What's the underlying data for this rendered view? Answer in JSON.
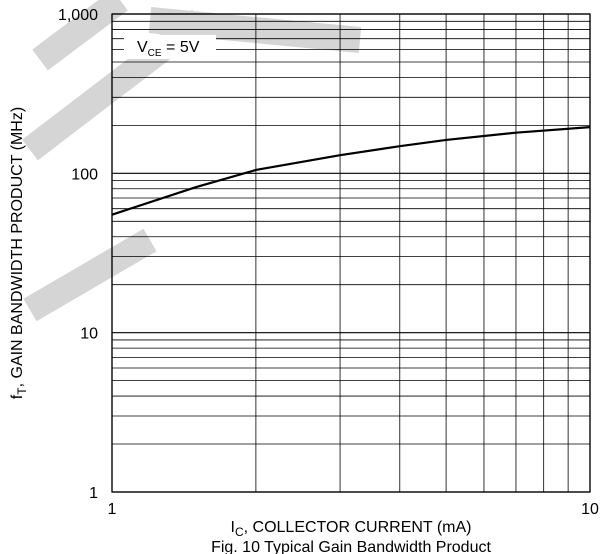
{
  "chart_data": {
    "type": "line",
    "log_x": true,
    "log_y": true,
    "grid": true,
    "xlim": [
      1,
      10
    ],
    "xticks": [
      1,
      10
    ],
    "ylim": [
      1,
      1000
    ],
    "yticks": [
      1,
      10,
      100,
      {
        "value": 1000,
        "label": "1,000"
      }
    ],
    "x_label": {
      "main": "I",
      "sub": "C",
      "rest": ", COLLECTOR CURRENT (mA)"
    },
    "y_label": {
      "main": "f",
      "sub": "T",
      "rest": ", GAIN BANDWIDTH PRODUCT (MHz)"
    },
    "annotation": {
      "main": "V",
      "sub": "CE",
      "rest": " = 5V"
    },
    "title": "Fig. 10 Typical Gain Bandwidth Product",
    "series": [
      {
        "color": "#000000",
        "x": [
          1,
          1.5,
          2,
          3,
          4,
          5,
          7,
          10
        ],
        "values": [
          55,
          82,
          105,
          130,
          148,
          162,
          180,
          195
        ]
      }
    ]
  }
}
